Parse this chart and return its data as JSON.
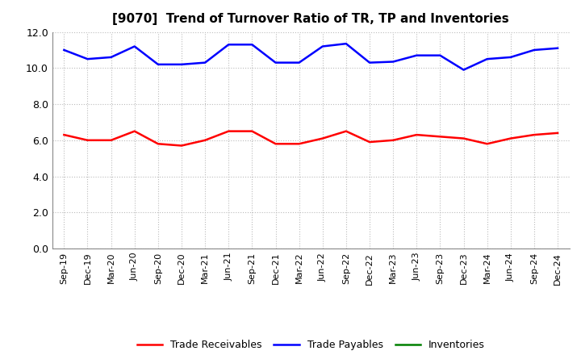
{
  "title": "[9070]  Trend of Turnover Ratio of TR, TP and Inventories",
  "x_labels": [
    "Sep-19",
    "Dec-19",
    "Mar-20",
    "Jun-20",
    "Sep-20",
    "Dec-20",
    "Mar-21",
    "Jun-21",
    "Sep-21",
    "Dec-21",
    "Mar-22",
    "Jun-22",
    "Sep-22",
    "Dec-22",
    "Mar-23",
    "Jun-23",
    "Sep-23",
    "Dec-23",
    "Mar-24",
    "Jun-24",
    "Sep-24",
    "Dec-24"
  ],
  "trade_receivables": [
    6.3,
    6.0,
    6.0,
    6.5,
    5.8,
    5.7,
    6.0,
    6.5,
    6.5,
    5.8,
    5.8,
    6.1,
    6.5,
    5.9,
    6.0,
    6.3,
    6.2,
    6.1,
    5.8,
    6.1,
    6.3,
    6.4
  ],
  "trade_payables": [
    11.0,
    10.5,
    10.6,
    11.2,
    10.2,
    10.2,
    10.3,
    11.3,
    11.3,
    10.3,
    10.3,
    11.2,
    11.35,
    10.3,
    10.35,
    10.7,
    10.7,
    9.9,
    10.5,
    10.6,
    11.0,
    11.1
  ],
  "ylim": [
    0.0,
    12.0
  ],
  "yticks": [
    0.0,
    2.0,
    4.0,
    6.0,
    8.0,
    10.0,
    12.0
  ],
  "ytick_labels": [
    "0.0",
    "2.0",
    "4.0",
    "6.0",
    "8.0",
    "10.0",
    "12.0"
  ],
  "line_color_tr": "#ff0000",
  "line_color_tp": "#0000ff",
  "line_color_inv": "#008000",
  "background_color": "#ffffff",
  "grid_color": "#bbbbbb",
  "title_fontsize": 11,
  "tick_fontsize": 9,
  "legend_labels": [
    "Trade Receivables",
    "Trade Payables",
    "Inventories"
  ]
}
